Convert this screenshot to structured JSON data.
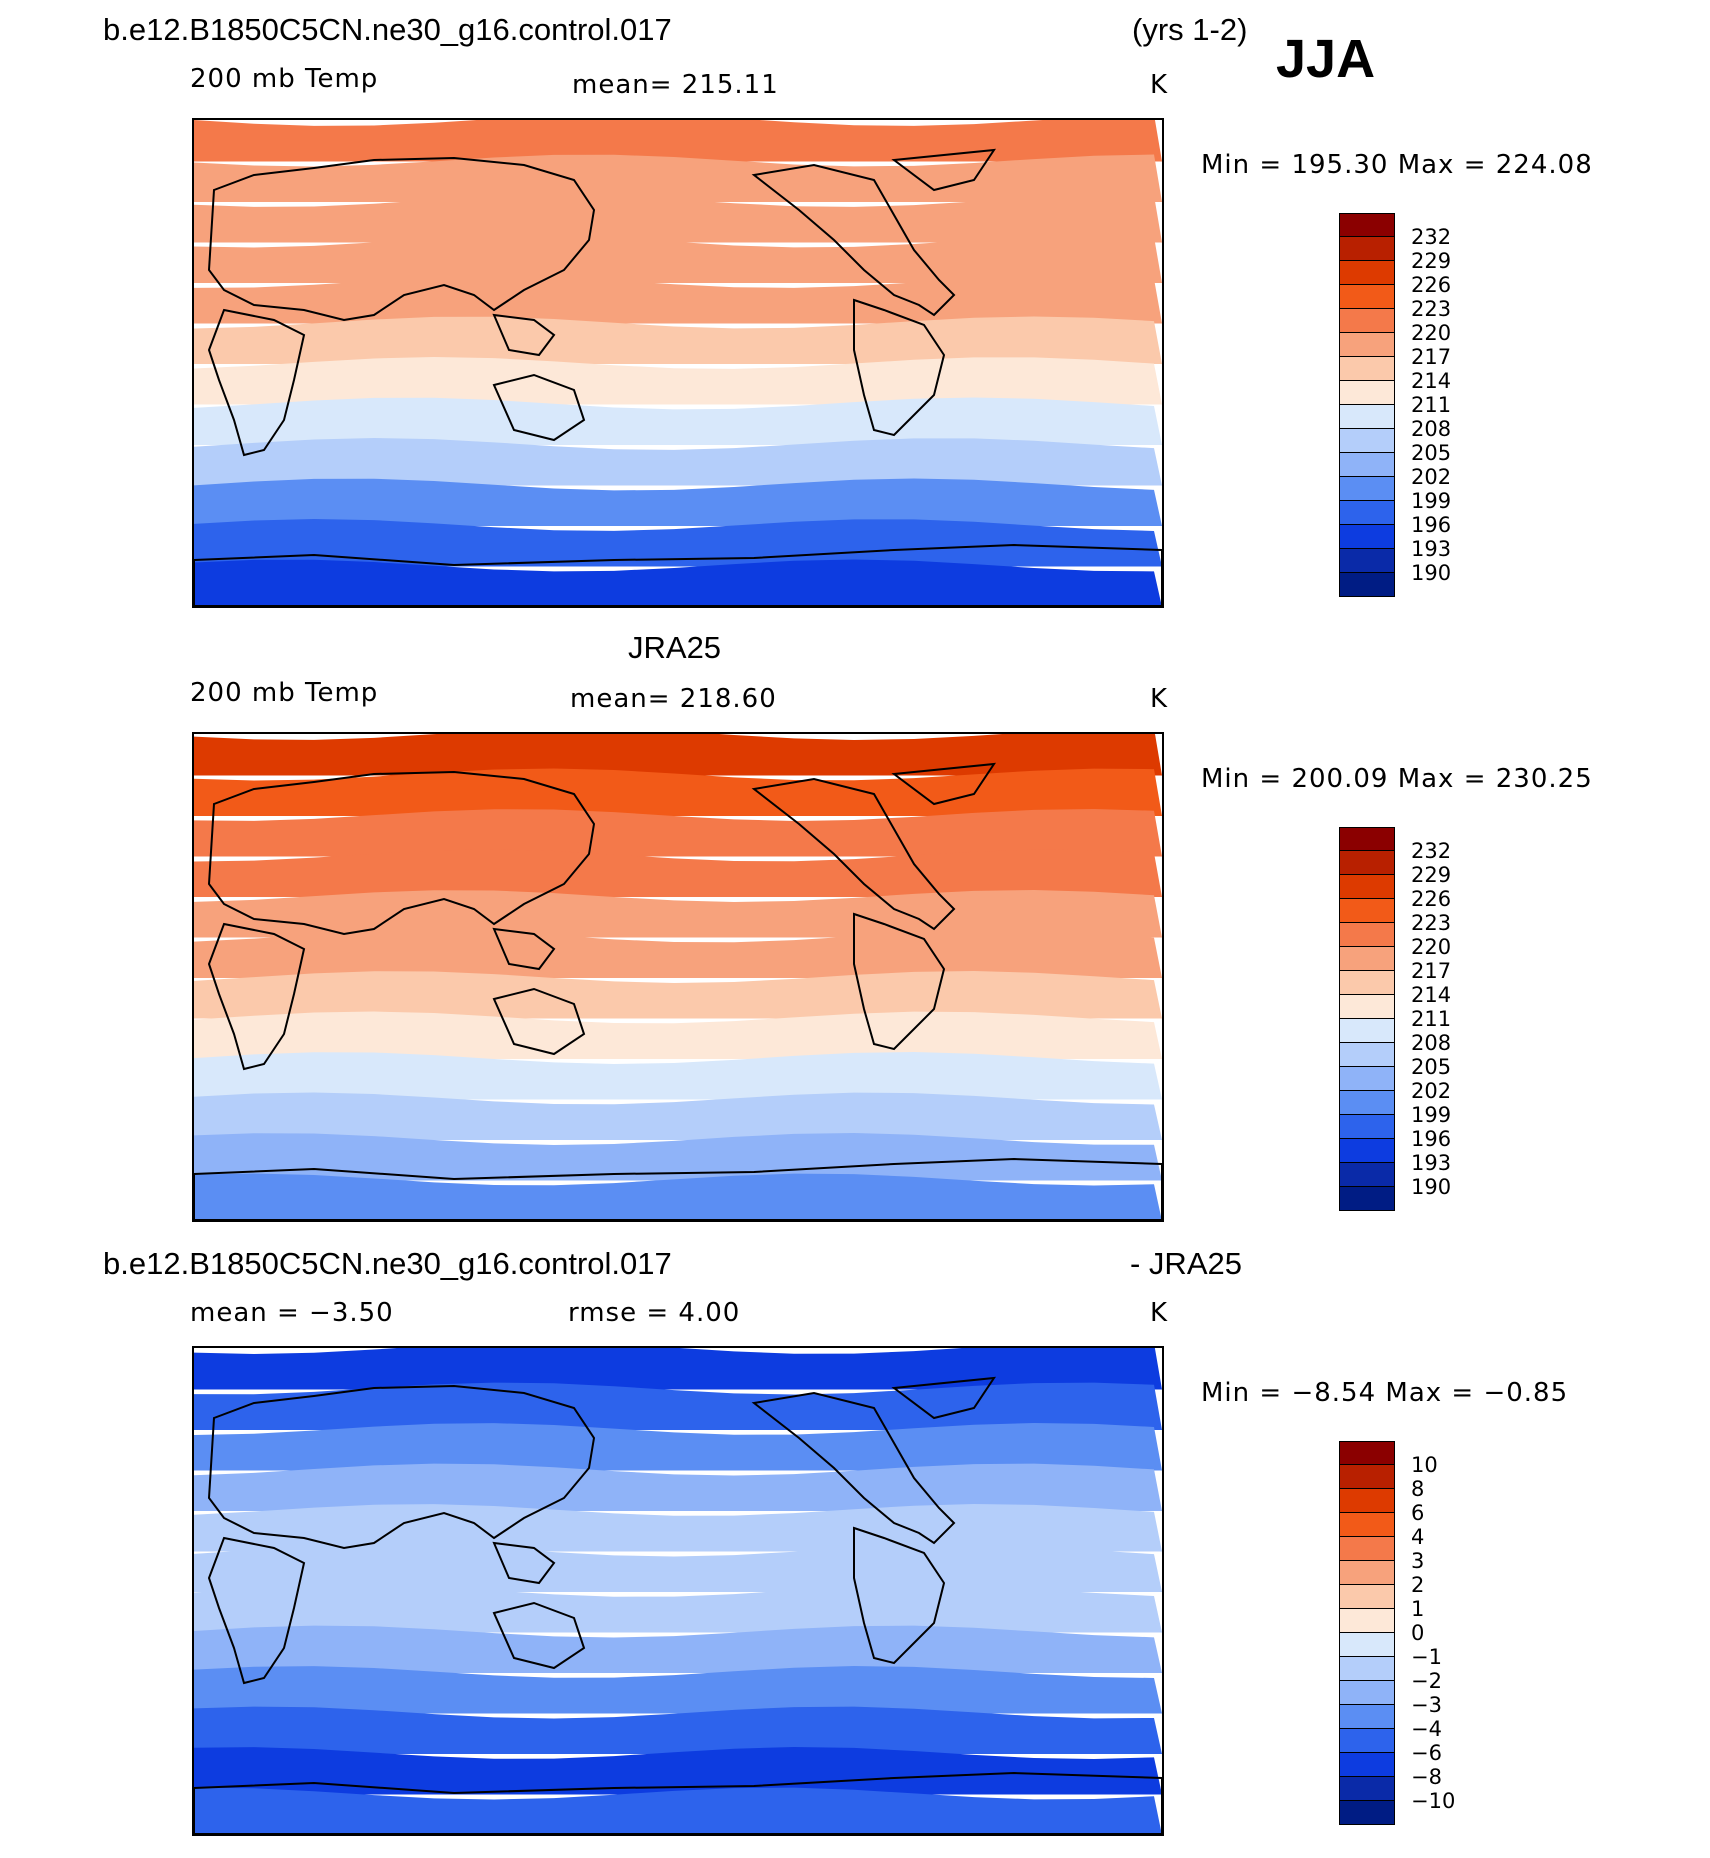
{
  "header": {
    "case": "b.e12.B1850C5CN.ne30_g16.control.017",
    "years": "(yrs 1-2)",
    "season": "JJA"
  },
  "panels": [
    {
      "id": "model",
      "title": "",
      "variable": "200 mb Temp",
      "stat_left": "mean= 215.11",
      "stat_mid": "",
      "units": "K",
      "minmax": "Min  =  195.30  Max  =  224.08",
      "colorbar": {
        "labels": [
          "232",
          "229",
          "226",
          "223",
          "220",
          "217",
          "214",
          "211",
          "208",
          "205",
          "202",
          "199",
          "196",
          "193",
          "190"
        ],
        "colors": [
          "#8b0000",
          "#b82000",
          "#dd3a00",
          "#f25a18",
          "#f4794a",
          "#f7a27c",
          "#fbc9ab",
          "#fde8d8",
          "#d8e8fb",
          "#b4cefa",
          "#8fb3f8",
          "#5b8ef3",
          "#2d63ec",
          "#0d3ce0",
          "#0a2aa8",
          "#001c84"
        ]
      },
      "bands": [
        "#f4794a",
        "#f7a27c",
        "#f7a27c",
        "#f7a27c",
        "#f7a27c",
        "#fbc9ab",
        "#fde8d8",
        "#d8e8fb",
        "#b4cefa",
        "#5b8ef3",
        "#2d63ec",
        "#0d3ce0"
      ]
    },
    {
      "id": "obs",
      "title": "JRA25",
      "variable": "200 mb Temp",
      "stat_left": "mean= 218.60",
      "stat_mid": "",
      "units": "K",
      "minmax": "Min  =  200.09  Max  =  230.25",
      "colorbar": {
        "labels": [
          "232",
          "229",
          "226",
          "223",
          "220",
          "217",
          "214",
          "211",
          "208",
          "205",
          "202",
          "199",
          "196",
          "193",
          "190"
        ],
        "colors": [
          "#8b0000",
          "#b82000",
          "#dd3a00",
          "#f25a18",
          "#f4794a",
          "#f7a27c",
          "#fbc9ab",
          "#fde8d8",
          "#d8e8fb",
          "#b4cefa",
          "#8fb3f8",
          "#5b8ef3",
          "#2d63ec",
          "#0d3ce0",
          "#0a2aa8",
          "#001c84"
        ]
      },
      "bands": [
        "#dd3a00",
        "#f25a18",
        "#f4794a",
        "#f4794a",
        "#f7a27c",
        "#f7a27c",
        "#fbc9ab",
        "#fde8d8",
        "#d8e8fb",
        "#b4cefa",
        "#8fb3f8",
        "#5b8ef3"
      ]
    },
    {
      "id": "diff",
      "title": "b.e12.B1850C5CN.ne30_g16.control.017",
      "title_right": "- JRA25",
      "variable": "",
      "stat_left": "mean =    −3.50",
      "stat_mid": "rmse =     4.00",
      "units": "K",
      "minmax": "Min  =    −8.54  Max  =    −0.85",
      "colorbar": {
        "labels": [
          "10",
          "8",
          "6",
          "4",
          "3",
          "2",
          "1",
          "0",
          "−1",
          "−2",
          "−3",
          "−4",
          "−6",
          "−8",
          "−10"
        ],
        "colors": [
          "#8b0000",
          "#b82000",
          "#dd3a00",
          "#f25a18",
          "#f4794a",
          "#f7a27c",
          "#fbc9ab",
          "#fde8d8",
          "#d8e8fb",
          "#b4cefa",
          "#8fb3f8",
          "#5b8ef3",
          "#2d63ec",
          "#0d3ce0",
          "#0a2aa8",
          "#001c84"
        ]
      },
      "bands": [
        "#0d3ce0",
        "#2d63ec",
        "#5b8ef3",
        "#8fb3f8",
        "#b4cefa",
        "#b4cefa",
        "#b4cefa",
        "#8fb3f8",
        "#5b8ef3",
        "#2d63ec",
        "#0d3ce0",
        "#2d63ec"
      ]
    }
  ]
}
